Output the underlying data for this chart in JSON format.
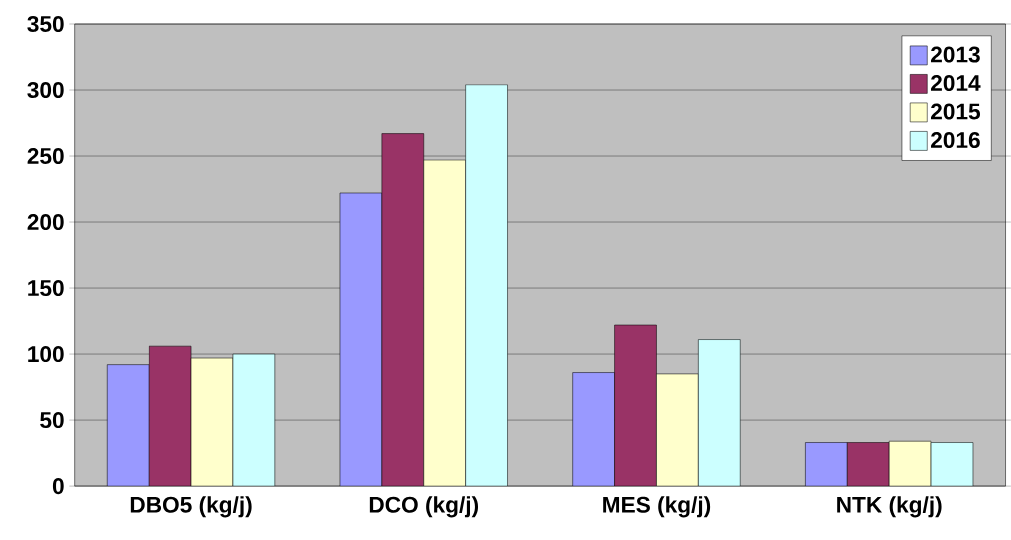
{
  "chart_data": {
    "type": "bar",
    "categories": [
      "DBO5 (kg/j)",
      "DCO (kg/j)",
      "MES (kg/j)",
      "NTK (kg/j)"
    ],
    "series": [
      {
        "name": "2013",
        "color": "#9999ff",
        "values": [
          92,
          222,
          86,
          33
        ]
      },
      {
        "name": "2014",
        "color": "#993366",
        "values": [
          106,
          267,
          122,
          33
        ]
      },
      {
        "name": "2015",
        "color": "#ffffcc",
        "values": [
          97,
          247,
          85,
          34
        ]
      },
      {
        "name": "2016",
        "color": "#ccffff",
        "values": [
          100,
          304,
          111,
          33
        ]
      }
    ],
    "ylim": [
      0,
      350
    ],
    "yticks": [
      0,
      50,
      100,
      150,
      200,
      250,
      300,
      350
    ],
    "grid": "y",
    "legend": "top right"
  }
}
